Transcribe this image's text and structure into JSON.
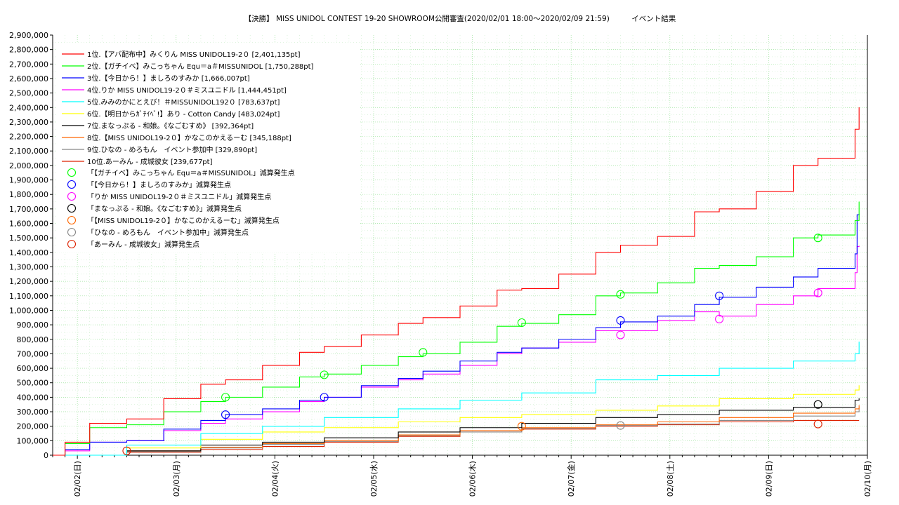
{
  "chart_data": {
    "type": "line",
    "title": "【決勝】 MISS UNIDOL CONTEST 19-20 SHOWROOM公開審査(2020/02/01 18:00〜2020/02/09 21:59)　　　イベント結果",
    "xlabel": "",
    "ylabel": "",
    "ylim": [
      0,
      2900000
    ],
    "y_ticks": [
      0,
      100000,
      200000,
      300000,
      400000,
      500000,
      600000,
      700000,
      800000,
      900000,
      1000000,
      1100000,
      1200000,
      1300000,
      1400000,
      1500000,
      1600000,
      1700000,
      1800000,
      1900000,
      2000000,
      2100000,
      2200000,
      2300000,
      2400000,
      2500000,
      2600000,
      2700000,
      2800000,
      2900000
    ],
    "y_tick_labels": [
      "0",
      "100,000",
      "200,000",
      "300,000",
      "400,000",
      "500,000",
      "600,000",
      "700,000",
      "800,000",
      "900,000",
      "1,000,000",
      "1,100,000",
      "1,200,000",
      "1,300,000",
      "1,400,000",
      "1,500,000",
      "1,600,000",
      "1,700,000",
      "1,800,000",
      "1,900,000",
      "2,000,000",
      "2,100,000",
      "2,200,000",
      "2,300,000",
      "2,400,000",
      "2,500,000",
      "2,600,000",
      "2,700,000",
      "2,800,000",
      "2,900,000"
    ],
    "x_range_days": [
      "2020-02-01 18:00",
      "2020-02-10 00:00"
    ],
    "x_ticks": [
      "2020-02-02",
      "2020-02-03",
      "2020-02-04",
      "2020-02-05",
      "2020-02-06",
      "2020-02-07",
      "2020-02-08",
      "2020-02-09",
      "2020-02-10"
    ],
    "x_tick_labels": [
      "02/02(日)",
      "02/03(月)",
      "02/04(火)",
      "02/05(水)",
      "02/06(木)",
      "02/07(金)",
      "02/08(土)",
      "02/09(日)",
      "02/10(月)"
    ],
    "grid": true,
    "legend_position": "top-left",
    "series": [
      {
        "name": "1位.【アバ配布中】みくりん MISS UNIDOL19-2０ [2,401,135pt]",
        "color": "#ff0000",
        "x": [
          "2020-02-01 18:00",
          "2020-02-01 21:00",
          "2020-02-02 03:00",
          "2020-02-02 12:00",
          "2020-02-02 21:00",
          "2020-02-03 06:00",
          "2020-02-03 12:00",
          "2020-02-03 21:00",
          "2020-02-04 06:00",
          "2020-02-04 12:00",
          "2020-02-04 21:00",
          "2020-02-05 06:00",
          "2020-02-05 12:00",
          "2020-02-05 21:00",
          "2020-02-06 06:00",
          "2020-02-06 12:00",
          "2020-02-06 21:00",
          "2020-02-07 06:00",
          "2020-02-07 12:00",
          "2020-02-07 21:00",
          "2020-02-08 06:00",
          "2020-02-08 12:00",
          "2020-02-08 21:00",
          "2020-02-09 06:00",
          "2020-02-09 12:00",
          "2020-02-09 21:00",
          "2020-02-09 21:59"
        ],
        "values": [
          0,
          90000,
          220000,
          250000,
          390000,
          490000,
          520000,
          620000,
          710000,
          750000,
          830000,
          910000,
          950000,
          1030000,
          1140000,
          1150000,
          1250000,
          1400000,
          1450000,
          1510000,
          1680000,
          1700000,
          1820000,
          2000000,
          2050000,
          2250000,
          2401135
        ]
      },
      {
        "name": "2位.【ガチイベ】みこっちゃん Equ＝a＃MISSUNIDOL [1,750,288pt]",
        "color": "#00ff00",
        "x": [
          "2020-02-01 18:00",
          "2020-02-01 21:00",
          "2020-02-02 03:00",
          "2020-02-02 12:00",
          "2020-02-02 21:00",
          "2020-02-03 06:00",
          "2020-02-03 12:00",
          "2020-02-03 21:00",
          "2020-02-04 06:00",
          "2020-02-04 12:00",
          "2020-02-04 21:00",
          "2020-02-05 06:00",
          "2020-02-05 12:00",
          "2020-02-05 21:00",
          "2020-02-06 06:00",
          "2020-02-06 12:00",
          "2020-02-06 21:00",
          "2020-02-07 06:00",
          "2020-02-07 12:00",
          "2020-02-07 21:00",
          "2020-02-08 06:00",
          "2020-02-08 12:00",
          "2020-02-08 21:00",
          "2020-02-09 06:00",
          "2020-02-09 12:00",
          "2020-02-09 21:00",
          "2020-02-09 21:59"
        ],
        "values": [
          0,
          80000,
          190000,
          210000,
          300000,
          370000,
          400000,
          470000,
          540000,
          560000,
          620000,
          680000,
          700000,
          780000,
          890000,
          910000,
          970000,
          1100000,
          1120000,
          1190000,
          1290000,
          1310000,
          1370000,
          1500000,
          1520000,
          1620000,
          1750288
        ]
      },
      {
        "name": "3位.【今日から！】ましろのすみか [1,666,007pt]",
        "color": "#0000ff",
        "x": [
          "2020-02-01 18:00",
          "2020-02-01 21:00",
          "2020-02-02 03:00",
          "2020-02-02 12:00",
          "2020-02-02 21:00",
          "2020-02-03 06:00",
          "2020-02-03 12:00",
          "2020-02-03 21:00",
          "2020-02-04 06:00",
          "2020-02-04 12:00",
          "2020-02-04 21:00",
          "2020-02-05 06:00",
          "2020-02-05 12:00",
          "2020-02-05 21:00",
          "2020-02-06 06:00",
          "2020-02-06 12:00",
          "2020-02-06 21:00",
          "2020-02-07 06:00",
          "2020-02-07 12:00",
          "2020-02-07 21:00",
          "2020-02-08 06:00",
          "2020-02-08 12:00",
          "2020-02-08 21:00",
          "2020-02-09 06:00",
          "2020-02-09 12:00",
          "2020-02-09 21:00",
          "2020-02-09 21:30",
          "2020-02-09 21:59"
        ],
        "values": [
          0,
          40000,
          90000,
          100000,
          180000,
          240000,
          280000,
          320000,
          380000,
          400000,
          480000,
          530000,
          580000,
          650000,
          710000,
          740000,
          800000,
          880000,
          920000,
          960000,
          1040000,
          1090000,
          1160000,
          1230000,
          1290000,
          1390000,
          1660000,
          1666007
        ]
      },
      {
        "name": "4位.りか MISS UNIDOL19-2０＃ミスユニドル [1,444,451pt]",
        "color": "#ff00ff",
        "x": [
          "2020-02-01 18:00",
          "2020-02-01 21:00",
          "2020-02-02 03:00",
          "2020-02-02 12:00",
          "2020-02-02 21:00",
          "2020-02-03 06:00",
          "2020-02-03 12:00",
          "2020-02-03 21:00",
          "2020-02-04 06:00",
          "2020-02-04 12:00",
          "2020-02-04 21:00",
          "2020-02-05 06:00",
          "2020-02-05 12:00",
          "2020-02-05 21:00",
          "2020-02-06 06:00",
          "2020-02-06 12:00",
          "2020-02-06 21:00",
          "2020-02-07 06:00",
          "2020-02-07 12:00",
          "2020-02-07 21:00",
          "2020-02-08 06:00",
          "2020-02-08 12:00",
          "2020-02-08 21:00",
          "2020-02-09 06:00",
          "2020-02-09 12:00",
          "2020-02-09 21:00",
          "2020-02-09 21:30",
          "2020-02-09 21:59"
        ],
        "values": [
          0,
          30000,
          90000,
          100000,
          170000,
          220000,
          250000,
          300000,
          370000,
          400000,
          470000,
          520000,
          560000,
          620000,
          700000,
          740000,
          780000,
          860000,
          860000,
          930000,
          990000,
          960000,
          1040000,
          1100000,
          1150000,
          1260000,
          1440000,
          1444451
        ]
      },
      {
        "name": "5位.みみのかにとえび！＃MISSUNIDOL192０ [783,637pt]",
        "color": "#00ffff",
        "x": [
          "2020-02-01 18:00",
          "2020-02-02 12:00",
          "2020-02-03 06:00",
          "2020-02-03 21:00",
          "2020-02-04 12:00",
          "2020-02-05 06:00",
          "2020-02-05 21:00",
          "2020-02-06 12:00",
          "2020-02-07 06:00",
          "2020-02-07 21:00",
          "2020-02-08 12:00",
          "2020-02-09 06:00",
          "2020-02-09 21:00",
          "2020-02-09 21:59"
        ],
        "values": [
          0,
          70000,
          150000,
          200000,
          260000,
          320000,
          380000,
          430000,
          520000,
          550000,
          600000,
          650000,
          700000,
          783637
        ]
      },
      {
        "name": "6位.【明日からｶﾞﾁｲﾍﾞ!】あり - Cotton Candy [483,024pt]",
        "color": "#ffff00",
        "x": [
          "2020-02-01 18:00",
          "2020-02-02 12:00",
          "2020-02-03 06:00",
          "2020-02-03 21:00",
          "2020-02-04 12:00",
          "2020-02-05 06:00",
          "2020-02-05 21:00",
          "2020-02-06 12:00",
          "2020-02-07 06:00",
          "2020-02-07 21:00",
          "2020-02-08 12:00",
          "2020-02-09 06:00",
          "2020-02-09 21:00",
          "2020-02-09 21:59"
        ],
        "values": [
          0,
          50000,
          110000,
          160000,
          190000,
          230000,
          260000,
          280000,
          310000,
          340000,
          390000,
          420000,
          450000,
          483024
        ]
      },
      {
        "name": "7位.まなっぷる - 和娘。《なごむすめ》 [392,364pt]",
        "color": "#000000",
        "x": [
          "2020-02-01 18:00",
          "2020-02-02 12:00",
          "2020-02-03 06:00",
          "2020-02-03 21:00",
          "2020-02-04 12:00",
          "2020-02-05 06:00",
          "2020-02-05 21:00",
          "2020-02-06 12:00",
          "2020-02-07 06:00",
          "2020-02-07 21:00",
          "2020-02-08 12:00",
          "2020-02-09 06:00",
          "2020-02-09 21:00",
          "2020-02-09 21:59"
        ],
        "values": [
          0,
          30000,
          70000,
          90000,
          120000,
          160000,
          190000,
          220000,
          260000,
          280000,
          310000,
          330000,
          380000,
          392364
        ]
      },
      {
        "name": "8位.【MISS UNIDOL19-2０】かなこのかえるーむ [345,188pt]",
        "color": "#ff6600",
        "x": [
          "2020-02-01 18:00",
          "2020-02-02 12:00",
          "2020-02-03 06:00",
          "2020-02-03 21:00",
          "2020-02-04 12:00",
          "2020-02-05 06:00",
          "2020-02-05 21:00",
          "2020-02-06 12:00",
          "2020-02-07 06:00",
          "2020-02-07 21:00",
          "2020-02-08 12:00",
          "2020-02-09 06:00",
          "2020-02-09 21:00",
          "2020-02-09 21:59"
        ],
        "values": [
          0,
          30000,
          55000,
          80000,
          100000,
          140000,
          170000,
          190000,
          210000,
          230000,
          260000,
          290000,
          320000,
          345188
        ]
      },
      {
        "name": "9位.ひなの - めろもん　イベント参加中 [329,890pt]",
        "color": "#888888",
        "x": [
          "2020-02-01 18:00",
          "2020-02-02 12:00",
          "2020-02-03 06:00",
          "2020-02-03 21:00",
          "2020-02-04 12:00",
          "2020-02-05 06:00",
          "2020-02-05 21:00",
          "2020-02-06 12:00",
          "2020-02-07 06:00",
          "2020-02-07 21:00",
          "2020-02-08 12:00",
          "2020-02-09 06:00",
          "2020-02-09 21:00",
          "2020-02-09 21:59"
        ],
        "values": [
          0,
          25000,
          50000,
          75000,
          95000,
          135000,
          160000,
          185000,
          205000,
          215000,
          240000,
          270000,
          300000,
          329890
        ]
      },
      {
        "name": "10位.あーみん - 成城彼女 [239,677pt]",
        "color": "#dd2200",
        "x": [
          "2020-02-01 18:00",
          "2020-02-02 12:00",
          "2020-02-03 06:00",
          "2020-02-03 21:00",
          "2020-02-04 12:00",
          "2020-02-05 06:00",
          "2020-02-05 21:00",
          "2020-02-06 12:00",
          "2020-02-07 06:00",
          "2020-02-07 21:00",
          "2020-02-08 12:00",
          "2020-02-09 06:00",
          "2020-02-09 21:00",
          "2020-02-09 21:59"
        ],
        "values": [
          0,
          20000,
          40000,
          60000,
          90000,
          130000,
          160000,
          180000,
          200000,
          210000,
          230000,
          240000,
          239677,
          239677
        ]
      }
    ],
    "markers": [
      {
        "name": "「【ガチイベ】みこっちゃん Equ＝a＃MISSUNIDOL」減算発生点",
        "color": "#00ff00",
        "x": [
          "2020-02-03 12:00",
          "2020-02-04 12:00",
          "2020-02-05 12:00",
          "2020-02-06 12:00",
          "2020-02-07 12:00",
          "2020-02-09 12:00"
        ],
        "values": [
          400000,
          555000,
          710000,
          915000,
          1110000,
          1500000
        ]
      },
      {
        "name": "「【今日から！】ましろのすみか」減算発生点",
        "color": "#0000ff",
        "x": [
          "2020-02-03 12:00",
          "2020-02-04 12:00",
          "2020-02-07 12:00",
          "2020-02-08 12:00"
        ],
        "values": [
          280000,
          400000,
          930000,
          1100000
        ]
      },
      {
        "name": "「りか MISS UNIDOL19-2０＃ミスユニドル」減算発生点",
        "color": "#ff00ff",
        "x": [
          "2020-02-07 12:00",
          "2020-02-08 12:00",
          "2020-02-09 12:00"
        ],
        "values": [
          830000,
          940000,
          1120000
        ]
      },
      {
        "name": "「まなっぷる - 和娘。《なごむすめ》」減算発生点",
        "color": "#000000",
        "x": [
          "2020-02-09 12:00"
        ],
        "values": [
          350000
        ]
      },
      {
        "name": "「【MISS UNIDOL19-2０】かなこのかえるーむ」減算発生点",
        "color": "#ff6600",
        "x": [
          "2020-02-06 12:00"
        ],
        "values": [
          200000
        ]
      },
      {
        "name": "「ひなの - めろもん　イベント参加中」減算発生点",
        "color": "#888888",
        "x": [
          "2020-02-07 12:00"
        ],
        "values": [
          205000
        ]
      },
      {
        "name": "「あーみん - 成城彼女」減算発生点",
        "color": "#dd2200",
        "x": [
          "2020-02-02 12:00",
          "2020-02-09 12:00"
        ],
        "values": [
          30000,
          215000
        ]
      }
    ]
  }
}
